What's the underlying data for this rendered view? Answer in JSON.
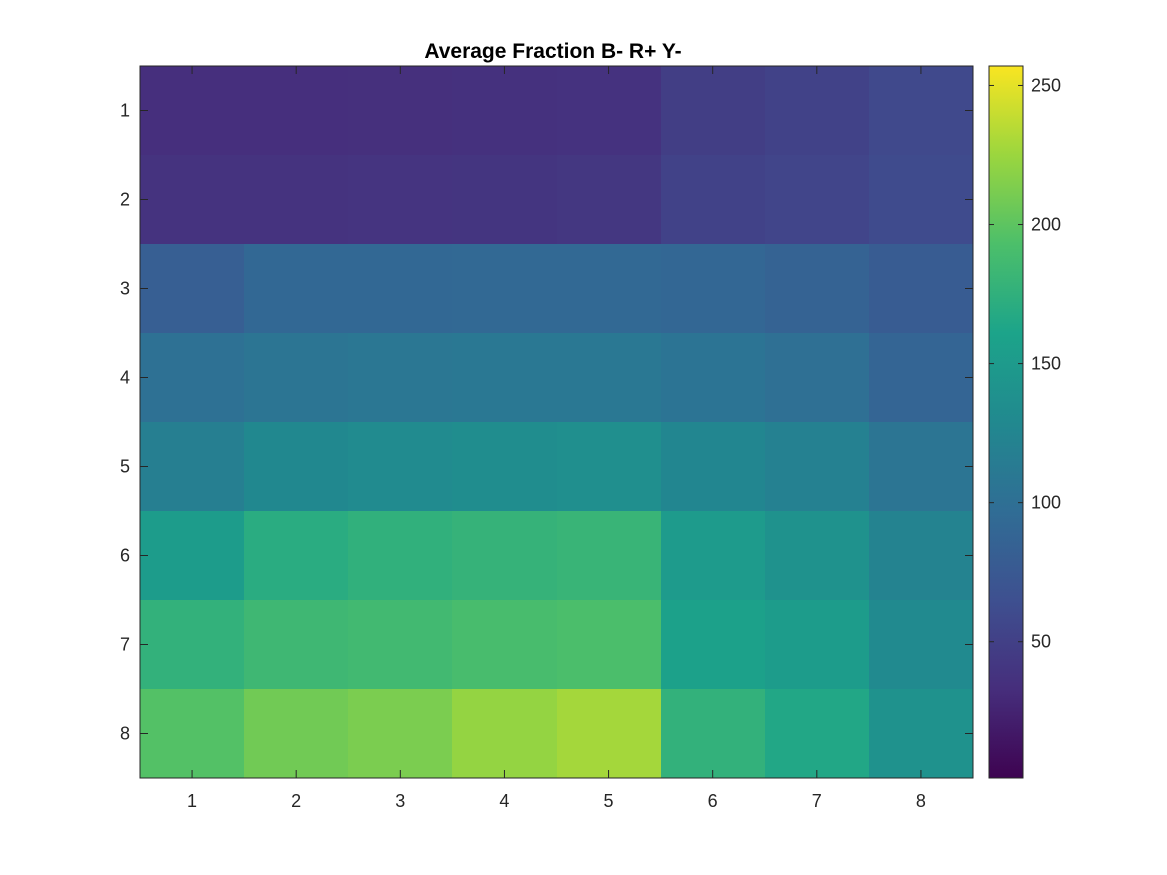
{
  "chart_data": {
    "type": "heatmap",
    "title": "Average Fraction B- R+ Y-",
    "xlabel": "",
    "ylabel": "",
    "x_categories": [
      "1",
      "2",
      "3",
      "4",
      "5",
      "6",
      "7",
      "8"
    ],
    "y_categories": [
      "1",
      "2",
      "3",
      "4",
      "5",
      "6",
      "7",
      "8"
    ],
    "colormap": "parula",
    "clim": [
      1,
      257
    ],
    "colorbar_ticks": [
      "50",
      "100",
      "150",
      "200",
      "250"
    ],
    "values": [
      [
        34,
        34,
        35,
        36,
        37,
        48,
        52,
        58
      ],
      [
        38,
        38,
        39,
        40,
        41,
        52,
        55,
        60
      ],
      [
        82,
        92,
        92,
        93,
        93,
        90,
        86,
        78
      ],
      [
        102,
        106,
        108,
        109,
        110,
        105,
        100,
        88
      ],
      [
        118,
        128,
        131,
        134,
        136,
        126,
        120,
        106
      ],
      [
        152,
        170,
        175,
        178,
        180,
        150,
        140,
        122
      ],
      [
        176,
        184,
        186,
        190,
        192,
        158,
        152,
        130
      ],
      [
        196,
        208,
        212,
        222,
        228,
        176,
        165,
        140
      ]
    ]
  }
}
